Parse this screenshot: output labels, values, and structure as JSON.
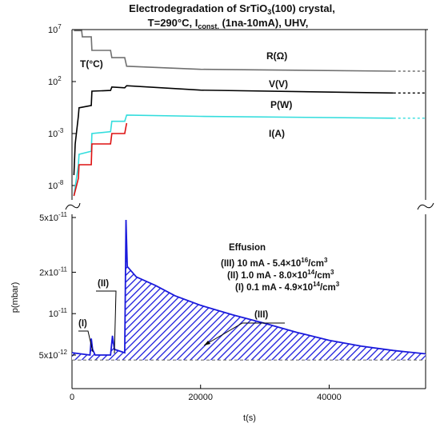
{
  "title_line1": "Electrodegradation of SrTiO",
  "title_line1_sub": "3",
  "title_line1_end": "(100) crystal,",
  "title_line2_a": "T=290°C, I",
  "title_line2_sub": "const.",
  "title_line2_b": " (1na-10mA), UHV,",
  "colors": {
    "R": "#707070",
    "T": "#22cc22",
    "V": "#000000",
    "P": "#33dddd",
    "I": "#dd1111",
    "p": "#1a1adc"
  },
  "chart_data": [
    {
      "type": "line",
      "panel": "upper",
      "scale": "log",
      "ylim": [
        1e-10,
        10000000.0
      ],
      "xlim": [
        0,
        55000
      ],
      "y_ticks": [
        {
          "base": "10",
          "exp": "7",
          "value": 10000000.0
        },
        {
          "base": "10",
          "exp": "2",
          "value": 100.0
        },
        {
          "base": "10",
          "exp": "-3",
          "value": 0.001
        },
        {
          "base": "10",
          "exp": "-8",
          "value": 1e-08
        }
      ],
      "series": [
        {
          "name": "R(Ω)",
          "key": "R",
          "points": [
            [
              300,
              8000000.0
            ],
            [
              1500,
              8000000.0
            ],
            [
              1600,
              2000000.0
            ],
            [
              3000,
              2000000.0
            ],
            [
              3100,
              100000.0
            ],
            [
              6000,
              100000.0
            ],
            [
              6200,
              20000.0
            ],
            [
              8200,
              20000.0
            ],
            [
              8500,
              3000.0
            ],
            [
              20000,
              1500.0
            ],
            [
              50000,
              1000.0
            ],
            [
              55000,
              1000.0
            ]
          ]
        },
        {
          "name": "T(°C)",
          "key": "T",
          "points": [
            [
              0,
              290
            ],
            [
              55000,
              290
            ]
          ]
        },
        {
          "name": "V(V)",
          "key": "V",
          "points": [
            [
              300,
              1e-07
            ],
            [
              500,
              0.0001
            ],
            [
              1000,
              0.05
            ],
            [
              1100,
              0.3
            ],
            [
              3000,
              0.5
            ],
            [
              3100,
              12
            ],
            [
              6000,
              14
            ],
            [
              6200,
              30
            ],
            [
              8200,
              25
            ],
            [
              8500,
              40
            ],
            [
              20000,
              15
            ],
            [
              50000,
              8
            ],
            [
              55000,
              8
            ]
          ]
        },
        {
          "name": "P(W)",
          "key": "P",
          "points": [
            [
              300,
              1e-09
            ],
            [
              1000,
              1e-06
            ],
            [
              1100,
              1e-05
            ],
            [
              3000,
              2e-05
            ],
            [
              3100,
              0.001
            ],
            [
              6000,
              0.0015
            ],
            [
              6200,
              0.015
            ],
            [
              8200,
              0.015
            ],
            [
              8500,
              0.06
            ],
            [
              20000,
              0.045
            ],
            [
              50000,
              0.03
            ],
            [
              55000,
              0.03
            ]
          ]
        },
        {
          "name": "I(A)",
          "key": "I",
          "points": [
            [
              300,
              1e-09
            ],
            [
              1000,
              5e-08
            ],
            [
              1100,
              1e-06
            ],
            [
              3000,
              1e-06
            ],
            [
              3100,
              0.0001
            ],
            [
              6000,
              0.0001
            ],
            [
              6200,
              0.001
            ],
            [
              8200,
              0.001
            ],
            [
              8500,
              0.01
            ],
            [
              55000,
              0.01
            ]
          ]
        }
      ]
    },
    {
      "type": "area",
      "panel": "lower",
      "ylabel": "p(mbar)",
      "xlabel": "t(s)",
      "xlim": [
        0,
        55000
      ],
      "x_ticks": [
        "0",
        "20000",
        "40000"
      ],
      "x_tick_values": [
        0,
        20000,
        40000
      ],
      "y_ticks": [
        {
          "label": "5x10",
          "exp": "-11",
          "value": 5e-11
        },
        {
          "label": "2x10",
          "exp": "-11",
          "value": 2e-11
        },
        {
          "label": "10",
          "exp": "-11",
          "value": 1e-11
        },
        {
          "label": "5x10",
          "exp": "-12",
          "value": 5e-12
        }
      ],
      "ylim": [
        4.3e-12,
        5.2e-11
      ],
      "baseline": 4.6e-12,
      "series": [
        {
          "key": "p",
          "points": [
            [
              0,
              5.2e-12
            ],
            [
              2800,
              5e-12
            ],
            [
              3000,
              6.6e-12
            ],
            [
              3200,
              5.5e-12
            ],
            [
              3600,
              5e-12
            ],
            [
              6000,
              5e-12
            ],
            [
              6300,
              6.9e-12
            ],
            [
              6600,
              5.5e-12
            ],
            [
              8200,
              5.2e-12
            ],
            [
              8400,
              4.8e-11
            ],
            [
              8600,
              2.2e-11
            ],
            [
              10000,
              1.85e-11
            ],
            [
              13000,
              1.6e-11
            ],
            [
              16000,
              1.35e-11
            ],
            [
              20000,
              1.15e-11
            ],
            [
              25000,
              9.8e-12
            ],
            [
              30000,
              8.5e-12
            ],
            [
              35000,
              7.3e-12
            ],
            [
              40000,
              6.4e-12
            ],
            [
              45000,
              5.8e-12
            ],
            [
              50000,
              5.4e-12
            ],
            [
              55000,
              5.1e-12
            ]
          ]
        }
      ],
      "annotations": [
        "(I)",
        "(II)",
        "(III)"
      ],
      "legend": {
        "title": "Effusion",
        "rows": [
          {
            "tag": "(III)",
            "text": "10 mA - 5.4×10",
            "exp": "16",
            "unit": "/cm",
            "unit_exp": "3"
          },
          {
            "tag": "(II)",
            "text": "1.0 mA - 8.0×10",
            "exp": "14",
            "unit": "/cm",
            "unit_exp": "3"
          },
          {
            "tag": "(I)",
            "text": "0.1 mA - 4.9×10",
            "exp": "14",
            "unit": "/cm",
            "unit_exp": "3"
          }
        ]
      }
    }
  ]
}
